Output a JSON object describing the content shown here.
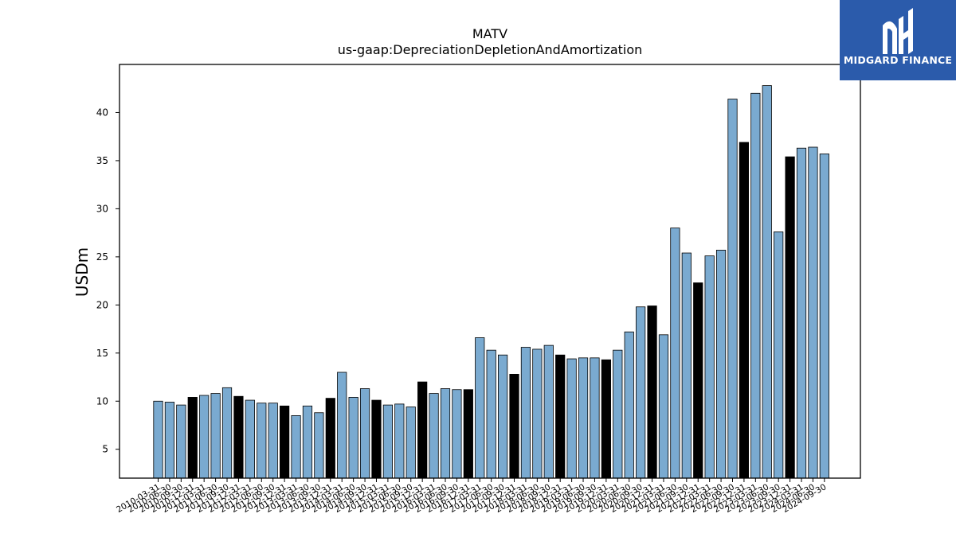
{
  "brand": {
    "name": "MIDGARD FINANCE",
    "background": "#2b5bab",
    "text_color": "#ffffff"
  },
  "chart_data": {
    "type": "bar",
    "title": "MATV",
    "subtitle": "us-gaap:DepreciationDepletionAndAmortization",
    "ylabel": "USDm",
    "xlabel": "",
    "ylim": [
      2,
      45
    ],
    "yticks": [
      5,
      10,
      15,
      20,
      25,
      30,
      35,
      40
    ],
    "colors": {
      "quarter": "#7aaad0",
      "annual": "#000000",
      "edge": "#000000"
    },
    "categories": [
      "2010-03-31",
      "2010-06-30",
      "2010-09-30",
      "2010-12-31",
      "2011-03-31",
      "2011-06-30",
      "2011-09-30",
      "2011-12-31",
      "2012-03-31",
      "2012-06-30",
      "2012-09-30",
      "2012-12-31",
      "2013-03-31",
      "2013-06-30",
      "2013-09-30",
      "2013-12-31",
      "2014-03-31",
      "2014-06-30",
      "2014-09-30",
      "2014-12-31",
      "2015-03-31",
      "2015-06-30",
      "2015-09-30",
      "2015-12-31",
      "2016-03-31",
      "2016-06-30",
      "2016-09-30",
      "2016-12-31",
      "2017-03-31",
      "2017-06-30",
      "2017-09-30",
      "2017-12-31",
      "2018-03-31",
      "2018-06-30",
      "2018-09-30",
      "2018-12-31",
      "2019-03-31",
      "2019-06-30",
      "2019-09-30",
      "2019-12-31",
      "2020-03-31",
      "2020-06-30",
      "2020-09-30",
      "2020-12-31",
      "2021-03-31",
      "2021-06-30",
      "2021-09-30",
      "2021-12-31",
      "2022-03-31",
      "2022-06-30",
      "2022-09-30",
      "2022-12-31",
      "2023-03-31",
      "2023-06-30",
      "2023-09-30",
      "2023-12-31",
      "2024-03-31",
      "2024-06-30",
      "2024-09-30"
    ],
    "values": [
      10.0,
      9.9,
      9.6,
      10.4,
      10.6,
      10.8,
      11.4,
      10.5,
      10.1,
      9.8,
      9.8,
      9.5,
      8.5,
      9.5,
      8.8,
      10.3,
      13.0,
      10.4,
      11.3,
      10.1,
      9.6,
      9.7,
      9.4,
      12.0,
      10.8,
      11.3,
      11.2,
      11.2,
      16.6,
      15.3,
      14.8,
      12.8,
      15.6,
      15.4,
      15.8,
      14.8,
      14.4,
      14.5,
      14.5,
      14.3,
      15.3,
      17.2,
      19.8,
      19.9,
      16.9,
      28.0,
      25.4,
      22.3,
      25.1,
      25.7,
      41.4,
      36.9,
      42.0,
      42.8,
      27.6,
      35.4,
      36.3,
      36.4,
      35.7
    ],
    "annual_flags": [
      0,
      0,
      0,
      1,
      0,
      0,
      0,
      1,
      0,
      0,
      0,
      1,
      0,
      0,
      0,
      1,
      0,
      0,
      0,
      1,
      0,
      0,
      0,
      1,
      0,
      0,
      0,
      1,
      0,
      0,
      0,
      1,
      0,
      0,
      0,
      1,
      0,
      0,
      0,
      1,
      0,
      0,
      0,
      1,
      0,
      0,
      0,
      1,
      0,
      0,
      0,
      1,
      0,
      0,
      0,
      1,
      0,
      0,
      0
    ],
    "legend": "none",
    "grid": false
  }
}
